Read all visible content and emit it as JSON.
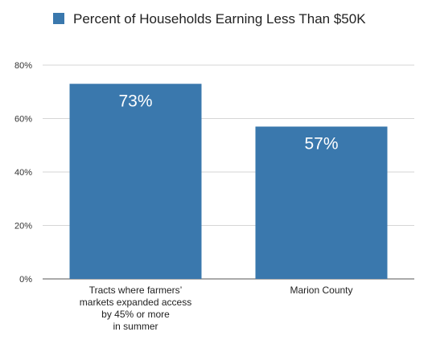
{
  "chart_data": {
    "type": "bar",
    "legend": {
      "label": "Percent of Households Earning Less Than $50K",
      "position": "top-left"
    },
    "categories": [
      [
        "Tracts where farmers’",
        "markets expanded access",
        "by 45% or more",
        "in summer"
      ],
      [
        "Marion County"
      ]
    ],
    "series": [
      {
        "name": "Percent of Households Earning Less Than $50K",
        "values": [
          73,
          57
        ],
        "color": "#3a78ad"
      }
    ],
    "data_labels": [
      "73%",
      "57%"
    ],
    "ylim": [
      0,
      80
    ],
    "yticks": [
      0,
      20,
      40,
      60,
      80
    ],
    "ytick_labels": [
      "0%",
      "20%",
      "40%",
      "60%",
      "80%"
    ],
    "grid": true,
    "grid_color": "#d6d6d6"
  }
}
